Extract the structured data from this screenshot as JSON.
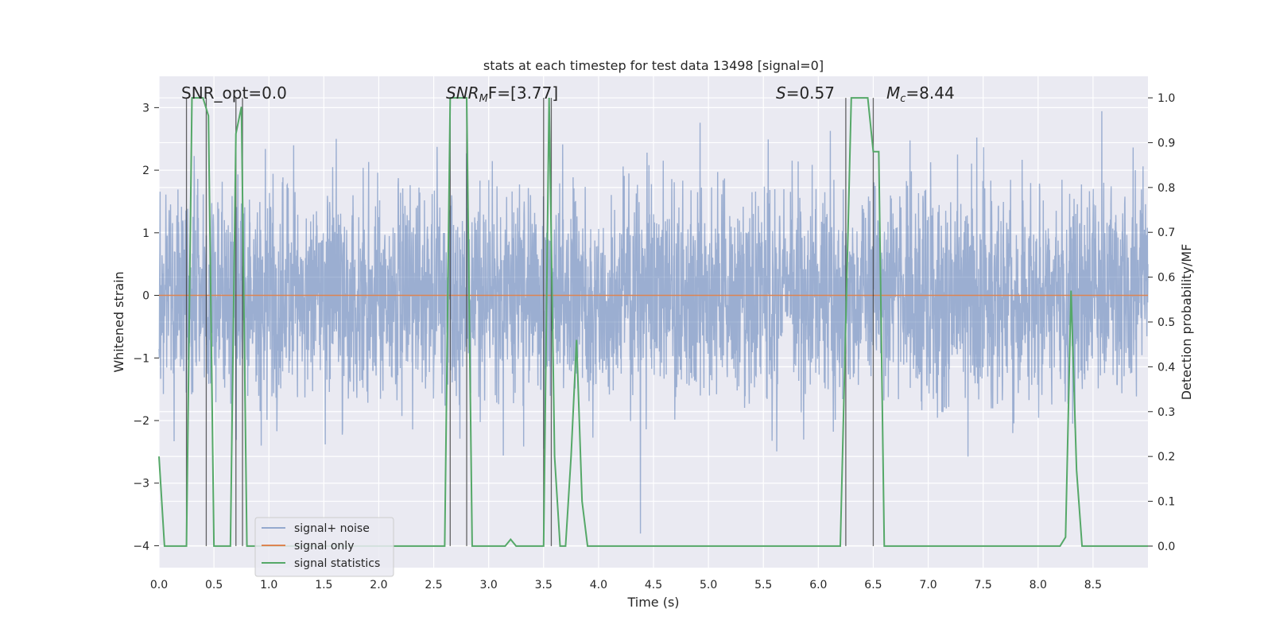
{
  "chart_data": {
    "type": "line",
    "title": "stats at each timestep for test data 13498 [signal=0]",
    "xlabel": "Time (s)",
    "ylabel": "Whitened strain",
    "y2label": "Detection probability/MF",
    "xlim": [
      0,
      9.0
    ],
    "ylim": [
      -4.35,
      3.5
    ],
    "y2lim": [
      -0.048,
      1.048
    ],
    "x_ticks": [
      "0.0",
      "0.5",
      "1.0",
      "1.5",
      "2.0",
      "2.5",
      "3.0",
      "3.5",
      "4.0",
      "4.5",
      "5.0",
      "5.5",
      "6.0",
      "6.5",
      "7.0",
      "7.5",
      "8.0",
      "8.5"
    ],
    "y_ticks": [
      "−4",
      "−3",
      "−2",
      "−1",
      "0",
      "1",
      "2",
      "3"
    ],
    "y2_ticks": [
      "0.0",
      "0.1",
      "0.2",
      "0.3",
      "0.4",
      "0.5",
      "0.6",
      "0.7",
      "0.8",
      "0.9",
      "1.0"
    ],
    "grid": true,
    "legend_position": "lower-left",
    "annotations": [
      "SNR_opt=0.0",
      "SNR",
      "M",
      "F=[3.77]",
      "S",
      "=0.57",
      "M",
      "c",
      "=8.44"
    ],
    "colors": {
      "noise": "#4c72b0",
      "signal": "#dd8452",
      "stats": "#55a868",
      "markers": "#333333",
      "background": "#eaeaf2",
      "grid": "#ffffff"
    },
    "series": [
      {
        "name": "signal+ noise",
        "axis": "left",
        "kind": "noise",
        "sigma": 1.0,
        "sample_rate_note": "dense random noise, approx range -4 to 3.5"
      },
      {
        "name": "signal only",
        "axis": "left",
        "x": [
          0,
          9.0
        ],
        "values": [
          0,
          0
        ]
      },
      {
        "name": "signal statistics",
        "axis": "right",
        "x": [
          0.0,
          0.05,
          0.25,
          0.3,
          0.4,
          0.45,
          0.5,
          0.65,
          0.7,
          0.75,
          0.8,
          0.9,
          2.0,
          2.2,
          2.3,
          2.5,
          2.6,
          2.65,
          2.7,
          2.8,
          2.85,
          2.9,
          3.0,
          3.15,
          3.2,
          3.25,
          3.3,
          3.45,
          3.5,
          3.55,
          3.6,
          3.65,
          3.7,
          3.75,
          3.8,
          3.85,
          3.9,
          3.95,
          4.0,
          6.2,
          6.3,
          6.35,
          6.45,
          6.5,
          6.55,
          6.6,
          6.65,
          8.2,
          8.25,
          8.3,
          8.35,
          8.4,
          8.45,
          8.5,
          9.0
        ],
        "values": [
          0.2,
          0.0,
          0.0,
          1.0,
          1.0,
          0.96,
          0.0,
          0.0,
          0.92,
          0.98,
          0.0,
          0.0,
          0.0,
          0.0,
          0.0,
          0.0,
          0.0,
          1.0,
          1.0,
          1.0,
          0.0,
          0.0,
          0.0,
          0.0,
          0.015,
          0.0,
          0.0,
          0.0,
          0.0,
          1.0,
          0.2,
          0.0,
          0.0,
          0.2,
          0.46,
          0.1,
          0.0,
          0.0,
          0.0,
          0.0,
          1.0,
          1.0,
          1.0,
          0.88,
          0.88,
          0.0,
          0.0,
          0.0,
          0.02,
          0.57,
          0.17,
          0.0,
          0.0,
          0.0,
          0.0
        ]
      }
    ],
    "marker_lines_x": [
      0.25,
      0.43,
      0.7,
      0.76,
      2.65,
      2.8,
      3.5,
      3.57,
      6.25,
      6.5
    ]
  },
  "legend": {
    "items": [
      {
        "label": "signal+ noise",
        "color": "#4c72b0"
      },
      {
        "label": "signal only",
        "color": "#dd8452"
      },
      {
        "label": "signal statistics",
        "color": "#55a868"
      }
    ]
  }
}
